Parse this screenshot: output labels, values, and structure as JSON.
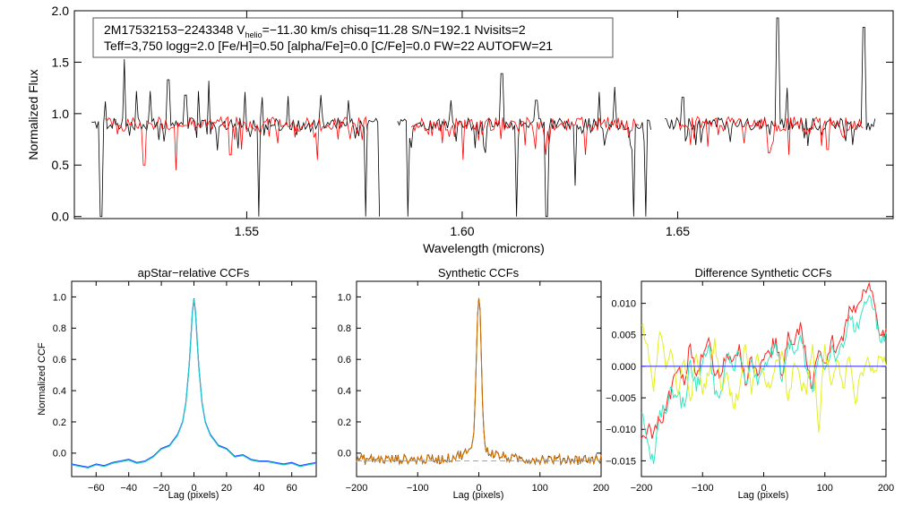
{
  "colors": {
    "observed": "#000000",
    "model": "#ff0000",
    "ccf_primary": "#1e3cff",
    "ccf_overlay": "#20c8c8",
    "ccf_model": "#d07000",
    "diff_red": "#ff2020",
    "diff_cyan": "#30e8c0",
    "diff_yellow": "#e0f020",
    "zero_line": "#2020ff"
  },
  "header": {
    "line1_a": "2M17532153−2243348  V",
    "line1_sub": "helio",
    "line1_b": "=−11.30 km/s  chisq=11.28  S/N=192.1  Nvisits=2",
    "line2": "Teff=3,750 logg=2.0 [Fe/H]=0.50 [alpha/Fe]=0.0 [C/Fe]=0.0 FW=22 AUTOFW=21"
  },
  "chart_data": [
    {
      "id": "spectrum",
      "type": "line",
      "title": "",
      "xlabel": "Wavelength (microns)",
      "ylabel": "Normalized Flux",
      "xlim": [
        1.51,
        1.7
      ],
      "ylim": [
        -0.02,
        2.0
      ],
      "xticks": [
        1.55,
        1.6,
        1.65
      ],
      "xtick_labels": [
        "1.55",
        "1.60",
        "1.65"
      ],
      "yticks": [
        0.0,
        0.5,
        1.0,
        1.5,
        2.0
      ],
      "ytick_labels": [
        "0.0",
        "0.5",
        "1.0",
        "1.5",
        "2.0"
      ],
      "chips": [
        [
          1.514,
          1.581
        ],
        [
          1.585,
          1.644
        ],
        [
          1.647,
          1.696
        ]
      ],
      "series": [
        {
          "name": "observed",
          "level": 0.9,
          "noise": 0.06,
          "spikes": [
            [
              1.5215,
              1.53
            ],
            [
              1.5172,
              1.12
            ],
            [
              1.5245,
              1.22
            ],
            [
              1.5275,
              1.22
            ],
            [
              1.5318,
              1.33
            ],
            [
              1.5358,
              1.18
            ],
            [
              1.5388,
              1.22
            ],
            [
              1.5412,
              1.32
            ],
            [
              1.5495,
              1.21
            ],
            [
              1.5535,
              1.16
            ],
            [
              1.5595,
              1.17
            ],
            [
              1.5672,
              1.18
            ],
            [
              1.5735,
              1.13
            ],
            [
              1.5975,
              1.13
            ],
            [
              1.6092,
              1.39
            ],
            [
              1.6172,
              1.13
            ],
            [
              1.6318,
              1.21
            ],
            [
              1.6355,
              1.26
            ],
            [
              1.6512,
              1.16
            ],
            [
              1.6732,
              1.93
            ],
            [
              1.6755,
              1.25
            ],
            [
              1.6932,
              1.84
            ]
          ],
          "dips": [
            [
              1.5162,
              0.0
            ],
            [
              1.5528,
              0.0
            ],
            [
              1.5776,
              0.0
            ],
            [
              1.5808,
              0.0
            ],
            [
              1.5875,
              0.0
            ],
            [
              1.6127,
              0.0
            ],
            [
              1.6196,
              0.0
            ],
            [
              1.6262,
              0.3
            ],
            [
              1.6398,
              0.0
            ],
            [
              1.6427,
              0.0
            ]
          ]
        },
        {
          "name": "model",
          "level": 0.9,
          "noise": 0.07,
          "dips": [
            [
              1.5262,
              0.5
            ],
            [
              1.5335,
              0.45
            ],
            [
              1.5462,
              0.6
            ],
            [
              1.5665,
              0.55
            ],
            [
              1.6002,
              0.55
            ],
            [
              1.6195,
              0.6
            ],
            [
              1.6285,
              0.6
            ],
            [
              1.6712,
              0.62
            ],
            [
              1.6758,
              0.6
            ],
            [
              1.6848,
              0.65
            ]
          ]
        }
      ]
    },
    {
      "id": "ccf1",
      "type": "line",
      "title": "apStar−relative CCFs",
      "xlabel": "Lag (pixels)",
      "ylabel": "Normalized CCF",
      "xlim": [
        -75,
        75
      ],
      "ylim": [
        -0.15,
        1.1
      ],
      "xticks": [
        -60,
        -40,
        -20,
        0,
        20,
        40,
        60
      ],
      "xtick_labels": [
        "−60",
        "−40",
        "−20",
        "0",
        "20",
        "40",
        "60"
      ],
      "yticks": [
        0.0,
        0.2,
        0.4,
        0.6,
        0.8,
        1.0
      ],
      "ytick_labels": [
        "0.0",
        "0.2",
        "0.4",
        "0.6",
        "0.8",
        "1.0"
      ],
      "series": [
        {
          "name": "ccf",
          "x": [
            -75,
            -70,
            -65,
            -60,
            -55,
            -50,
            -45,
            -40,
            -35,
            -30,
            -25,
            -20,
            -15,
            -10,
            -7,
            -5,
            -3,
            -2,
            -1,
            0,
            1,
            2,
            3,
            5,
            7,
            10,
            15,
            20,
            25,
            30,
            35,
            40,
            45,
            50,
            55,
            60,
            65,
            70,
            75
          ],
          "y": [
            -0.07,
            -0.08,
            -0.09,
            -0.07,
            -0.08,
            -0.06,
            -0.05,
            -0.04,
            -0.06,
            -0.05,
            -0.02,
            0.03,
            0.05,
            0.12,
            0.2,
            0.32,
            0.55,
            0.72,
            0.9,
            0.99,
            0.9,
            0.72,
            0.55,
            0.32,
            0.2,
            0.12,
            0.05,
            0.03,
            -0.02,
            -0.01,
            -0.04,
            -0.05,
            -0.05,
            -0.06,
            -0.07,
            -0.06,
            -0.08,
            -0.07,
            -0.06
          ]
        }
      ]
    },
    {
      "id": "ccf2",
      "type": "line",
      "title": "Synthetic CCFs",
      "xlabel": "Lag (pixels)",
      "ylabel": "",
      "xlim": [
        -200,
        200
      ],
      "ylim": [
        -0.15,
        1.1
      ],
      "xticks": [
        -200,
        -100,
        0,
        100,
        200
      ],
      "xtick_labels": [
        "−200",
        "−100",
        "0",
        "100",
        "200"
      ],
      "yticks": [
        0.0,
        0.2,
        0.4,
        0.6,
        0.8,
        1.0
      ],
      "ytick_labels": [
        "0.0",
        "0.2",
        "0.4",
        "0.6",
        "0.8",
        "1.0"
      ],
      "series": [
        {
          "name": "ccf",
          "peak": 1.0,
          "base": -0.04,
          "width": 4,
          "noise": 0.03
        }
      ]
    },
    {
      "id": "ccf3",
      "type": "line",
      "title": "Difference Synthetic CCFs",
      "xlabel": "Lag (pixels)",
      "ylabel": "",
      "xlim": [
        -200,
        200
      ],
      "ylim": [
        -0.0175,
        0.0135
      ],
      "xticks": [
        -200,
        -100,
        0,
        100,
        200
      ],
      "xtick_labels": [
        "−200",
        "−100",
        "0",
        "100",
        "200"
      ],
      "yticks": [
        -0.015,
        -0.01,
        -0.005,
        0.0,
        0.005,
        0.01
      ],
      "ytick_labels": [
        "−0.015",
        "−0.010",
        "−0.005",
        "0.000",
        "0.005",
        "0.010"
      ],
      "series": [
        {
          "name": "red",
          "x": [
            -200,
            -190,
            -180,
            -170,
            -160,
            -150,
            -140,
            -130,
            -120,
            -110,
            -100,
            -90,
            -80,
            -70,
            -60,
            -50,
            -40,
            -30,
            -20,
            -10,
            0,
            10,
            20,
            30,
            40,
            50,
            60,
            70,
            80,
            90,
            100,
            110,
            120,
            130,
            140,
            150,
            160,
            170,
            180,
            190,
            200
          ],
          "y": [
            -0.0115,
            -0.01,
            -0.0105,
            -0.0085,
            -0.007,
            -0.003,
            -0.0005,
            -0.003,
            0.0035,
            -0.0015,
            0.0015,
            0.0045,
            -0.0015,
            -0.0015,
            0.002,
            0.001,
            0.0035,
            -0.003,
            0.0015,
            -0.0015,
            0.001,
            0.002,
            0.0045,
            -0.0015,
            0.0055,
            0.0035,
            0.007,
            0.0005,
            -0.0035,
            0.0025,
            0.0005,
            0.004,
            0.003,
            0.004,
            0.0095,
            0.0085,
            0.0105,
            0.0125,
            0.0105,
            0.005,
            0.006
          ]
        },
        {
          "name": "cyan",
          "x": [
            -200,
            -190,
            -180,
            -170,
            -160,
            -150,
            -140,
            -130,
            -120,
            -110,
            -100,
            -90,
            -80,
            -70,
            -60,
            -50,
            -40,
            -30,
            -20,
            -10,
            0,
            10,
            20,
            30,
            40,
            50,
            60,
            70,
            80,
            90,
            100,
            110,
            120,
            130,
            140,
            150,
            160,
            170,
            180,
            190,
            200
          ],
          "y": [
            -0.0075,
            -0.012,
            -0.0155,
            -0.007,
            -0.0075,
            -0.0035,
            -0.0045,
            -0.0065,
            0.001,
            -0.004,
            0.0005,
            0.0035,
            -0.0045,
            -0.004,
            0.0015,
            -0.0005,
            0.002,
            -0.0025,
            0.001,
            -0.003,
            -0.0005,
            0.0015,
            0.0035,
            -0.0025,
            0.004,
            0.002,
            0.005,
            -0.0005,
            -0.004,
            0.0015,
            -0.0005,
            0.0025,
            0.0015,
            0.003,
            0.008,
            0.0055,
            0.0085,
            0.0105,
            0.009,
            0.004,
            0.0055
          ]
        },
        {
          "name": "yellow",
          "x": [
            -200,
            -190,
            -180,
            -170,
            -160,
            -150,
            -140,
            -130,
            -120,
            -110,
            -100,
            -90,
            -80,
            -70,
            -60,
            -50,
            -40,
            -30,
            -20,
            -10,
            0,
            10,
            20,
            30,
            40,
            50,
            60,
            70,
            80,
            90,
            100,
            110,
            120,
            130,
            140,
            150,
            160,
            170,
            180,
            190,
            200
          ],
          "y": [
            0.0065,
            0.0035,
            -0.004,
            0.0055,
            -0.0005,
            0.002,
            -0.0045,
            0.001,
            -0.0055,
            0.002,
            -0.0045,
            -0.0015,
            0.0045,
            -0.0035,
            -0.001,
            -0.0065,
            -0.004,
            0.0035,
            -0.0045,
            0.002,
            -0.001,
            -0.0035,
            0.001,
            0.0025,
            -0.0055,
            0.0005,
            -0.0025,
            -0.0045,
            0.0035,
            -0.0105,
            0.0035,
            -0.003,
            0.001,
            -0.0035,
            0.0015,
            -0.006,
            -0.001,
            0.0015,
            -0.001,
            0.0015,
            0.0
          ]
        },
        {
          "name": "zero",
          "x": [
            -200,
            200
          ],
          "y": [
            0.0,
            0.0
          ]
        }
      ]
    }
  ]
}
